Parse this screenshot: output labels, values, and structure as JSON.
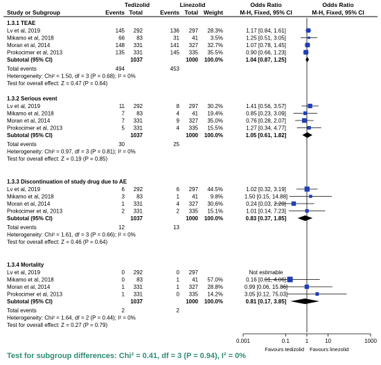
{
  "header": {
    "group_a": "Tedizolid",
    "group_b": "Linezolid",
    "study_col": "Study or Subgroup",
    "events": "Events",
    "total": "Total",
    "weight": "Weight",
    "or_title": "Odds Ratio",
    "or_method": "M-H, Fixed, 95% CI"
  },
  "chart_data": {
    "type": "forest",
    "scale": "log",
    "xlim": [
      0.001,
      1000
    ],
    "ticks": [
      "0.001",
      "0.1",
      "1",
      "10",
      "1000"
    ],
    "tick_values": [
      0.001,
      0.1,
      1,
      10,
      1000
    ],
    "favours_left": "Favours tedizolid",
    "favours_right": "Favours linezolid",
    "colors": {
      "study_marker": "#1f3fb5",
      "diamond": "#000000",
      "footer_text": "#2e8b74"
    },
    "subgroups": [
      {
        "title": "1.3.1 TEAE",
        "studies": [
          {
            "name": "Lv et al, 2019",
            "e1": "145",
            "n1": "292",
            "e2": "136",
            "n2": "297",
            "weight": "28.3%",
            "ci_text": "1.17 [0.84, 1.61]",
            "or": 1.17,
            "lo": 0.84,
            "hi": 1.61,
            "w": 28.3
          },
          {
            "name": "Mikamo et al, 2018",
            "e1": "66",
            "n1": "83",
            "e2": "31",
            "n2": "41",
            "weight": "3.5%",
            "ci_text": "1.25 [0.51, 3.05]",
            "or": 1.25,
            "lo": 0.51,
            "hi": 3.05,
            "w": 3.5
          },
          {
            "name": "Moran et al, 2014",
            "e1": "148",
            "n1": "331",
            "e2": "141",
            "n2": "327",
            "weight": "32.7%",
            "ci_text": "1.07 [0.78, 1.45]",
            "or": 1.07,
            "lo": 0.78,
            "hi": 1.45,
            "w": 32.7
          },
          {
            "name": "Prokocimer et al, 2013",
            "e1": "135",
            "n1": "331",
            "e2": "145",
            "n2": "335",
            "weight": "35.5%",
            "ci_text": "0.90 [0.66, 1.23]",
            "or": 0.9,
            "lo": 0.66,
            "hi": 1.23,
            "w": 35.5
          }
        ],
        "subtotal": {
          "label": "Subtotal (95% CI)",
          "n1": "1037",
          "n2": "1000",
          "weight": "100.0%",
          "ci_text": "1.04 [0.87, 1.25]",
          "or": 1.04,
          "lo": 0.87,
          "hi": 1.25
        },
        "total_events": {
          "label": "Total events",
          "e1": "494",
          "e2": "453"
        },
        "heterogeneity": "Heterogeneity: Chi² = 1.50, df = 3 (P = 0.68); I² = 0%",
        "overall": "Test for overall effect: Z = 0.47 (P = 0.64)"
      },
      {
        "title": "1.3.2 Serious event",
        "studies": [
          {
            "name": "Lv et al, 2019",
            "e1": "11",
            "n1": "292",
            "e2": "8",
            "n2": "297",
            "weight": "30.2%",
            "ci_text": "1.41 [0.56, 3.57]",
            "or": 1.41,
            "lo": 0.56,
            "hi": 3.57,
            "w": 30.2
          },
          {
            "name": "Mikamo et al, 2018",
            "e1": "7",
            "n1": "83",
            "e2": "4",
            "n2": "41",
            "weight": "19.4%",
            "ci_text": "0.85 [0.23, 3.09]",
            "or": 0.85,
            "lo": 0.23,
            "hi": 3.09,
            "w": 19.4
          },
          {
            "name": "Moran et al, 2014",
            "e1": "7",
            "n1": "331",
            "e2": "9",
            "n2": "327",
            "weight": "35.0%",
            "ci_text": "0.76 [0.28, 2.07]",
            "or": 0.76,
            "lo": 0.28,
            "hi": 2.07,
            "w": 35.0
          },
          {
            "name": "Prokocimer et al, 2013",
            "e1": "5",
            "n1": "331",
            "e2": "4",
            "n2": "335",
            "weight": "15.5%",
            "ci_text": "1.27 [0.34, 4.77]",
            "or": 1.27,
            "lo": 0.34,
            "hi": 4.77,
            "w": 15.5
          }
        ],
        "subtotal": {
          "label": "Subtotal (95% CI)",
          "n1": "1037",
          "n2": "1000",
          "weight": "100.0%",
          "ci_text": "1.05 [0.61, 1.82]",
          "or": 1.05,
          "lo": 0.61,
          "hi": 1.82
        },
        "total_events": {
          "label": "Total events",
          "e1": "30",
          "e2": "25"
        },
        "heterogeneity": "Heterogeneity: Chi² = 0.97, df = 3 (P = 0.81); I² = 0%",
        "overall": "Test for overall effect: Z = 0.19 (P = 0.85)"
      },
      {
        "title": "1.3.3 Discontinuation of study drug due to AE",
        "studies": [
          {
            "name": "Lv et al, 2019",
            "e1": "6",
            "n1": "292",
            "e2": "6",
            "n2": "297",
            "weight": "44.5%",
            "ci_text": "1.02 [0.32, 3.19]",
            "or": 1.02,
            "lo": 0.32,
            "hi": 3.19,
            "w": 44.5
          },
          {
            "name": "Mikamo et al, 2018",
            "e1": "3",
            "n1": "83",
            "e2": "1",
            "n2": "41",
            "weight": "9.8%",
            "ci_text": "1.50 [0.15, 14.88]",
            "or": 1.5,
            "lo": 0.15,
            "hi": 14.88,
            "w": 9.8
          },
          {
            "name": "Moran et al, 2014",
            "e1": "1",
            "n1": "331",
            "e2": "4",
            "n2": "327",
            "weight": "30.6%",
            "ci_text": "0.24 [0.03, 2.20]",
            "or": 0.24,
            "lo": 0.03,
            "hi": 2.2,
            "w": 30.6
          },
          {
            "name": "Prokocimer et al, 2013",
            "e1": "2",
            "n1": "331",
            "e2": "2",
            "n2": "335",
            "weight": "15.1%",
            "ci_text": "1.01 [0.14, 7.23]",
            "or": 1.01,
            "lo": 0.14,
            "hi": 7.23,
            "w": 15.1
          }
        ],
        "subtotal": {
          "label": "Subtotal (95% CI)",
          "n1": "1037",
          "n2": "1000",
          "weight": "100.0%",
          "ci_text": "0.83 [0.37, 1.85]",
          "or": 0.83,
          "lo": 0.37,
          "hi": 1.85
        },
        "total_events": {
          "label": "Total events",
          "e1": "12",
          "e2": "13"
        },
        "heterogeneity": "Heterogeneity: Chi² = 1.61, df = 3 (P = 0.66); I² = 0%",
        "overall": "Test for overall effect: Z = 0.46 (P = 0.64)"
      },
      {
        "title": "1.3.4 Mortality",
        "studies": [
          {
            "name": "Lv et al, 2019",
            "e1": "0",
            "n1": "292",
            "e2": "0",
            "n2": "297",
            "weight": "",
            "ci_text": "Not estimable",
            "or": null,
            "lo": null,
            "hi": null,
            "w": 0
          },
          {
            "name": "Mikamo et al, 2018",
            "e1": "0",
            "n1": "83",
            "e2": "1",
            "n2": "41",
            "weight": "57.0%",
            "ci_text": "0.16 [0.01, 4.06]",
            "or": 0.16,
            "lo": 0.01,
            "hi": 4.06,
            "w": 57.0
          },
          {
            "name": "Moran et al, 2014",
            "e1": "1",
            "n1": "331",
            "e2": "1",
            "n2": "327",
            "weight": "28.8%",
            "ci_text": "0.99 [0.06, 15.86]",
            "or": 0.99,
            "lo": 0.06,
            "hi": 15.86,
            "w": 28.8
          },
          {
            "name": "Prokocimer et al, 2013",
            "e1": "1",
            "n1": "331",
            "e2": "0",
            "n2": "335",
            "weight": "14.2%",
            "ci_text": "3.05 [0.12, 75.03]",
            "or": 3.05,
            "lo": 0.12,
            "hi": 75.03,
            "w": 14.2
          }
        ],
        "subtotal": {
          "label": "Subtotal (95% CI)",
          "n1": "1037",
          "n2": "1000",
          "weight": "100.0%",
          "ci_text": "0.81 [0.17, 3.85]",
          "or": 0.81,
          "lo": 0.17,
          "hi": 3.85
        },
        "total_events": {
          "label": "Total events",
          "e1": "2",
          "e2": "2"
        },
        "heterogeneity": "Heterogeneity: Chi² = 1.64, df = 2 (P = 0.44); I² = 0%",
        "overall": "Test for overall effect: Z = 0.27 (P = 0.79)"
      }
    ]
  },
  "footer": {
    "subgroup_test": "Test for subgroup differences: Chi² = 0.41, df = 3 (P = 0.94), I² = 0%"
  }
}
